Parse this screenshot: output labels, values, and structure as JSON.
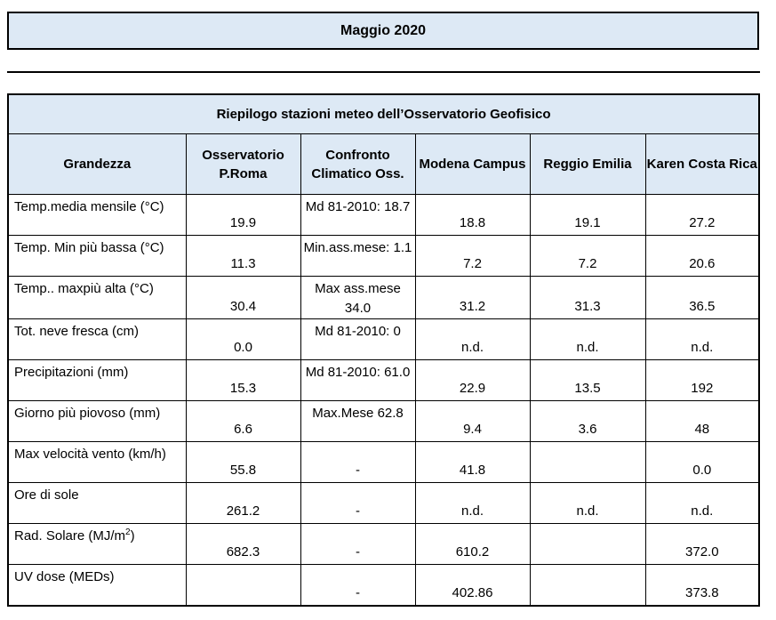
{
  "page_title": "Maggio 2020",
  "table": {
    "caption": "Riepilogo stazioni meteo dell’Osservatorio Geofisico",
    "headers": [
      "Grandezza",
      "Osservatorio P.Roma",
      "Confronto Climatico Oss.",
      "Modena Campus",
      "Reggio Emilia",
      "Karen Costa Rica"
    ],
    "rows": [
      {
        "label": "Temp.media mensile (°C)",
        "roma": "19.9",
        "confronto": "Md 81-2010: 18.7",
        "modena": "18.8",
        "reggio": "19.1",
        "karen": "27.2"
      },
      {
        "label": "Temp. Min più bassa (°C)",
        "roma": "11.3",
        "confronto": "Min.ass.mese: 1.1",
        "modena": "7.2",
        "reggio": "7.2",
        "karen": "20.6"
      },
      {
        "label": "Temp.. maxpiù alta (°C)",
        "roma": "30.4",
        "confronto": "Max ass.mese 34.0",
        "modena": "31.2",
        "reggio": "31.3",
        "karen": "36.5"
      },
      {
        "label": "Tot. neve fresca (cm)",
        "roma": "0.0",
        "confronto": "Md 81-2010: 0",
        "modena": "n.d.",
        "reggio": "n.d.",
        "karen": "n.d."
      },
      {
        "label": "Precipitazioni  (mm)",
        "roma": "15.3",
        "confronto": "Md 81-2010: 61.0",
        "modena": "22.9",
        "reggio": "13.5",
        "karen": "192"
      },
      {
        "label": "Giorno più piovoso (mm)",
        "roma": "6.6",
        "confronto": "Max.Mese 62.8",
        "modena": "9.4",
        "reggio": "3.6",
        "karen": "48"
      },
      {
        "label": "Max velocità vento (km/h)",
        "roma": "55.8",
        "confronto": "-",
        "modena": "41.8",
        "reggio": "",
        "karen": "0.0"
      },
      {
        "label": "Ore di sole",
        "roma": "261.2",
        "confronto": "-",
        "modena": "n.d.",
        "reggio": "n.d.",
        "karen": "n.d."
      },
      {
        "label": "Rad. Solare (MJ/m",
        "label_sup": "2",
        "label_end": ")",
        "roma": "682.3",
        "confronto": "-",
        "modena": "610.2",
        "reggio": "",
        "karen": "372.0"
      },
      {
        "label": "UV dose (MEDs)",
        "roma": "",
        "confronto": "-",
        "modena": "402.86",
        "reggio": "",
        "karen": "373.8"
      }
    ]
  },
  "colors": {
    "header_bg": "#dde9f5",
    "border": "#000000"
  }
}
